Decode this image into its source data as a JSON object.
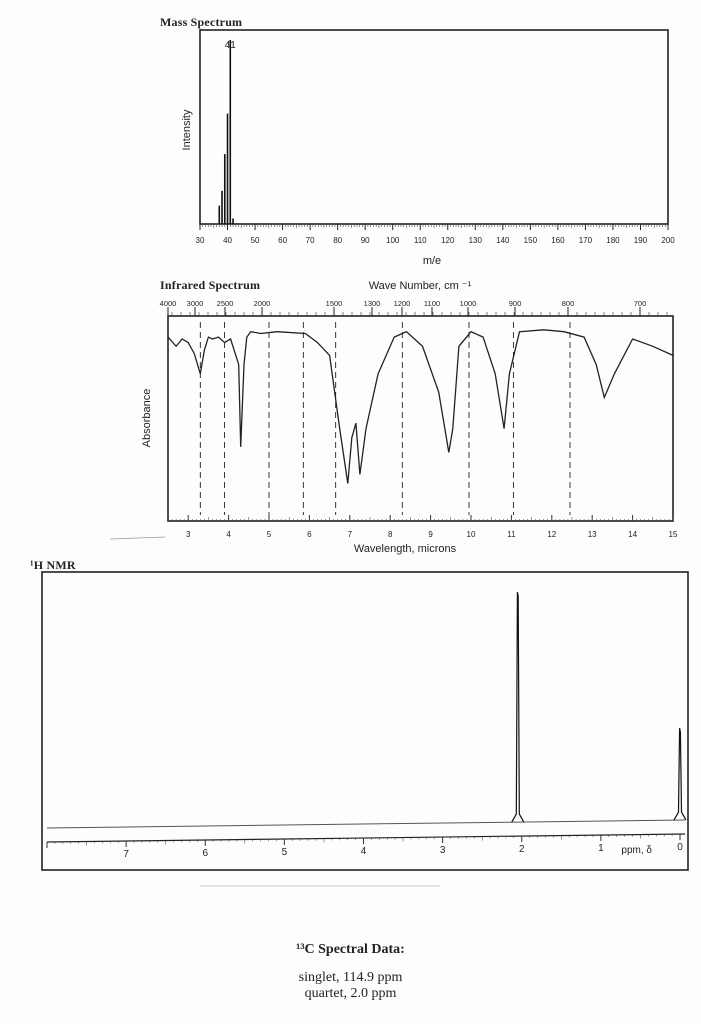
{
  "chart_data": [
    {
      "type": "bar",
      "title": "Mass Spectrum",
      "xlabel": "m/e",
      "ylabel": "Intensity",
      "xlim": [
        30,
        200
      ],
      "xticks": [
        30,
        40,
        50,
        60,
        70,
        80,
        90,
        100,
        110,
        120,
        130,
        140,
        150,
        160,
        170,
        180,
        190,
        200
      ],
      "peak_label": "41",
      "x": [
        37,
        38,
        39,
        40,
        41,
        42
      ],
      "values": [
        10,
        18,
        38,
        60,
        100,
        3
      ]
    },
    {
      "type": "line",
      "title": "Infrared Spectrum",
      "top_axis_label": "Wave Number, cm ⁻¹",
      "top_ticks": [
        "4000",
        "3000",
        "2500",
        "2000",
        "1500",
        "1300",
        "1200",
        "1100",
        "1000",
        "900",
        "800",
        "700"
      ],
      "xlabel": "Wavelength, microns",
      "ylabel": "Absorbance",
      "xlim": [
        2.5,
        15
      ],
      "xticks": [
        3,
        4,
        5,
        6,
        7,
        8,
        9,
        10,
        11,
        12,
        13,
        14,
        15
      ],
      "reference_lines": [
        3.3,
        3.9,
        5.0,
        5.85,
        6.65,
        8.3,
        9.95,
        11.05,
        12.45
      ],
      "x": [
        2.5,
        2.7,
        2.85,
        3.0,
        3.15,
        3.3,
        3.4,
        3.5,
        3.6,
        3.75,
        3.9,
        4.05,
        4.25,
        4.3,
        4.38,
        4.45,
        4.55,
        4.8,
        5.2,
        5.9,
        6.2,
        6.5,
        6.75,
        6.95,
        7.05,
        7.15,
        7.25,
        7.4,
        7.7,
        8.1,
        8.4,
        8.8,
        9.2,
        9.45,
        9.55,
        9.7,
        10.0,
        10.3,
        10.6,
        10.82,
        10.95,
        11.2,
        11.8,
        12.3,
        12.8,
        13.1,
        13.3,
        13.55,
        14.0,
        14.5,
        15.0
      ],
      "values": [
        0.05,
        0.1,
        0.06,
        0.08,
        0.14,
        0.25,
        0.12,
        0.05,
        0.06,
        0.05,
        0.08,
        0.06,
        0.2,
        0.65,
        0.2,
        0.05,
        0.02,
        0.03,
        0.02,
        0.03,
        0.08,
        0.15,
        0.55,
        0.85,
        0.6,
        0.52,
        0.8,
        0.55,
        0.25,
        0.05,
        0.02,
        0.1,
        0.35,
        0.68,
        0.55,
        0.1,
        0.02,
        0.05,
        0.25,
        0.55,
        0.25,
        0.02,
        0.01,
        0.02,
        0.05,
        0.2,
        0.38,
        0.25,
        0.06,
        0.1,
        0.15
      ]
    },
    {
      "type": "line",
      "title": "¹H NMR",
      "xlabel": "ppm, δ",
      "xlim": [
        8,
        0
      ],
      "xticks": [
        7,
        6,
        5,
        4,
        3,
        2,
        1,
        0
      ],
      "peaks": [
        {
          "ppm": 2.05,
          "height": 1.0
        },
        {
          "ppm": 0.0,
          "height": 0.4
        }
      ]
    }
  ],
  "carbon13": {
    "title": "¹³C Spectral Data:",
    "lines": [
      "singlet, 114.9 ppm",
      "quartet, 2.0 ppm"
    ]
  }
}
